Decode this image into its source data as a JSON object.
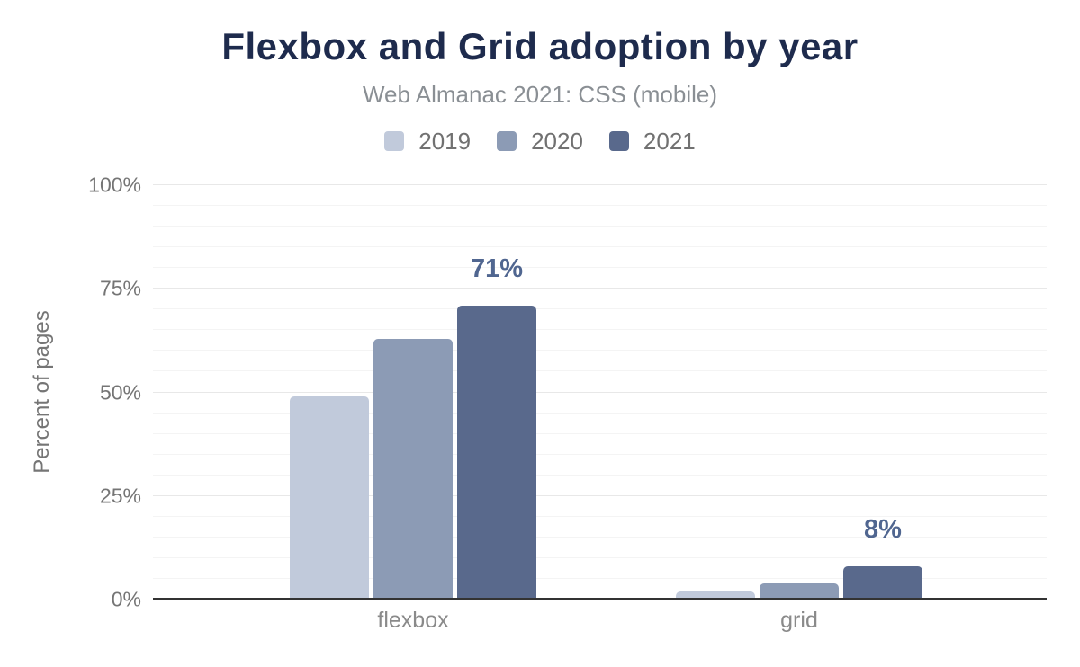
{
  "chart_data": {
    "type": "bar",
    "title": "Flexbox and Grid adoption by year",
    "subtitle": "Web Almanac 2021: CSS (mobile)",
    "categories": [
      "flexbox",
      "grid"
    ],
    "series": [
      {
        "name": "2019",
        "color": "#c1cadb",
        "values": [
          49,
          2
        ]
      },
      {
        "name": "2020",
        "color": "#8c9bb5",
        "values": [
          63,
          4
        ]
      },
      {
        "name": "2021",
        "color": "#59698c",
        "values": [
          71,
          8
        ]
      }
    ],
    "annotations": [
      {
        "category": "flexbox",
        "series": "2021",
        "text": "71%"
      },
      {
        "category": "grid",
        "series": "2021",
        "text": "8%"
      }
    ],
    "xlabel": "",
    "ylabel": "Percent of pages",
    "ylim": [
      0,
      100
    ],
    "yticks": [
      0,
      25,
      50,
      75,
      100
    ],
    "ytick_labels": [
      "0%",
      "25%",
      "50%",
      "75%",
      "100%"
    ],
    "minor_grid_step": 5,
    "grid": true,
    "legend_position": "top"
  },
  "colors": {
    "title": "#1e2b4d",
    "subtitle": "#8a8f94",
    "axis_text": "#757575",
    "category_text": "#8a8a8a",
    "legend_text": "#717171",
    "annotation": "#506690",
    "axis_line": "#333333",
    "grid_major": "#e8e8e8",
    "grid_minor": "#f4f4f4"
  }
}
